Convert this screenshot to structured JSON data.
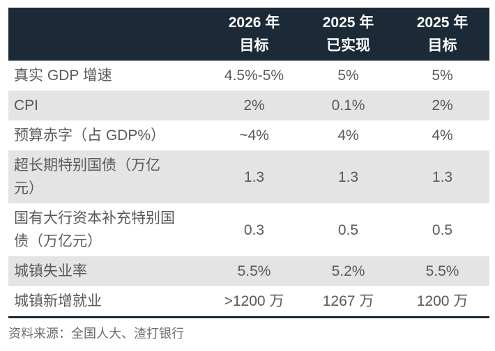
{
  "chart_data": {
    "type": "table",
    "columns": [
      "",
      "2026 年目标",
      "2025 年已实现",
      "2025 年目标"
    ],
    "rows": [
      [
        "真实 GDP 增速",
        "4.5%-5%",
        "5%",
        "5%"
      ],
      [
        "CPI",
        "2%",
        "0.1%",
        "2%"
      ],
      [
        "预算赤字（占 GDP%）",
        "~4%",
        "4%",
        "4%"
      ],
      [
        "超长期特别国债（万亿元）",
        "1.3",
        "1.3",
        "1.3"
      ],
      [
        "国有大行资本补充特别国债（万亿元）",
        "0.3",
        "0.5",
        "0.5"
      ],
      [
        "城镇失业率",
        "5.5%",
        "5.2%",
        "5.5%"
      ],
      [
        "城镇新增就业",
        ">1200 万",
        "1267 万",
        "1200 万"
      ]
    ],
    "source": "资料来源：全国人大、渣打银行",
    "layout": {
      "header_position": "top",
      "zebra_striping": true
    }
  },
  "table": {
    "header": {
      "col1": "2026 年\n目标",
      "col2": "2025 年\n已实现",
      "col3": "2025 年\n目标"
    },
    "rows": [
      {
        "label": "真实 GDP 增速",
        "values": [
          "4.5%-5%",
          "5%",
          "5%"
        ]
      },
      {
        "label": "CPI",
        "values": [
          "2%",
          "0.1%",
          "2%"
        ]
      },
      {
        "label": "预算赤字（占 GDP%）",
        "values": [
          "~4%",
          "4%",
          "4%"
        ]
      },
      {
        "label": "超长期特别国债（万亿\n元）",
        "values": [
          "1.3",
          "1.3",
          "1.3"
        ]
      },
      {
        "label": "国有大行资本补充特别国\n债（万亿元）",
        "values": [
          "0.3",
          "0.5",
          "0.5"
        ]
      },
      {
        "label": "城镇失业率",
        "values": [
          "5.5%",
          "5.2%",
          "5.5%"
        ]
      },
      {
        "label": "城镇新增就业",
        "values": [
          ">1200 万",
          "1267 万",
          "1200 万"
        ]
      }
    ]
  },
  "footer": {
    "source": "资料来源：全国人大、渣打银行"
  },
  "colors": {
    "header_bg": "#1c2a38",
    "header_text": "#ffffff",
    "row_alt_bg": "#e4e4e4",
    "body_text": "#595959",
    "source_text": "#6b6b6b",
    "bottom_rule": "#1c2a38"
  }
}
